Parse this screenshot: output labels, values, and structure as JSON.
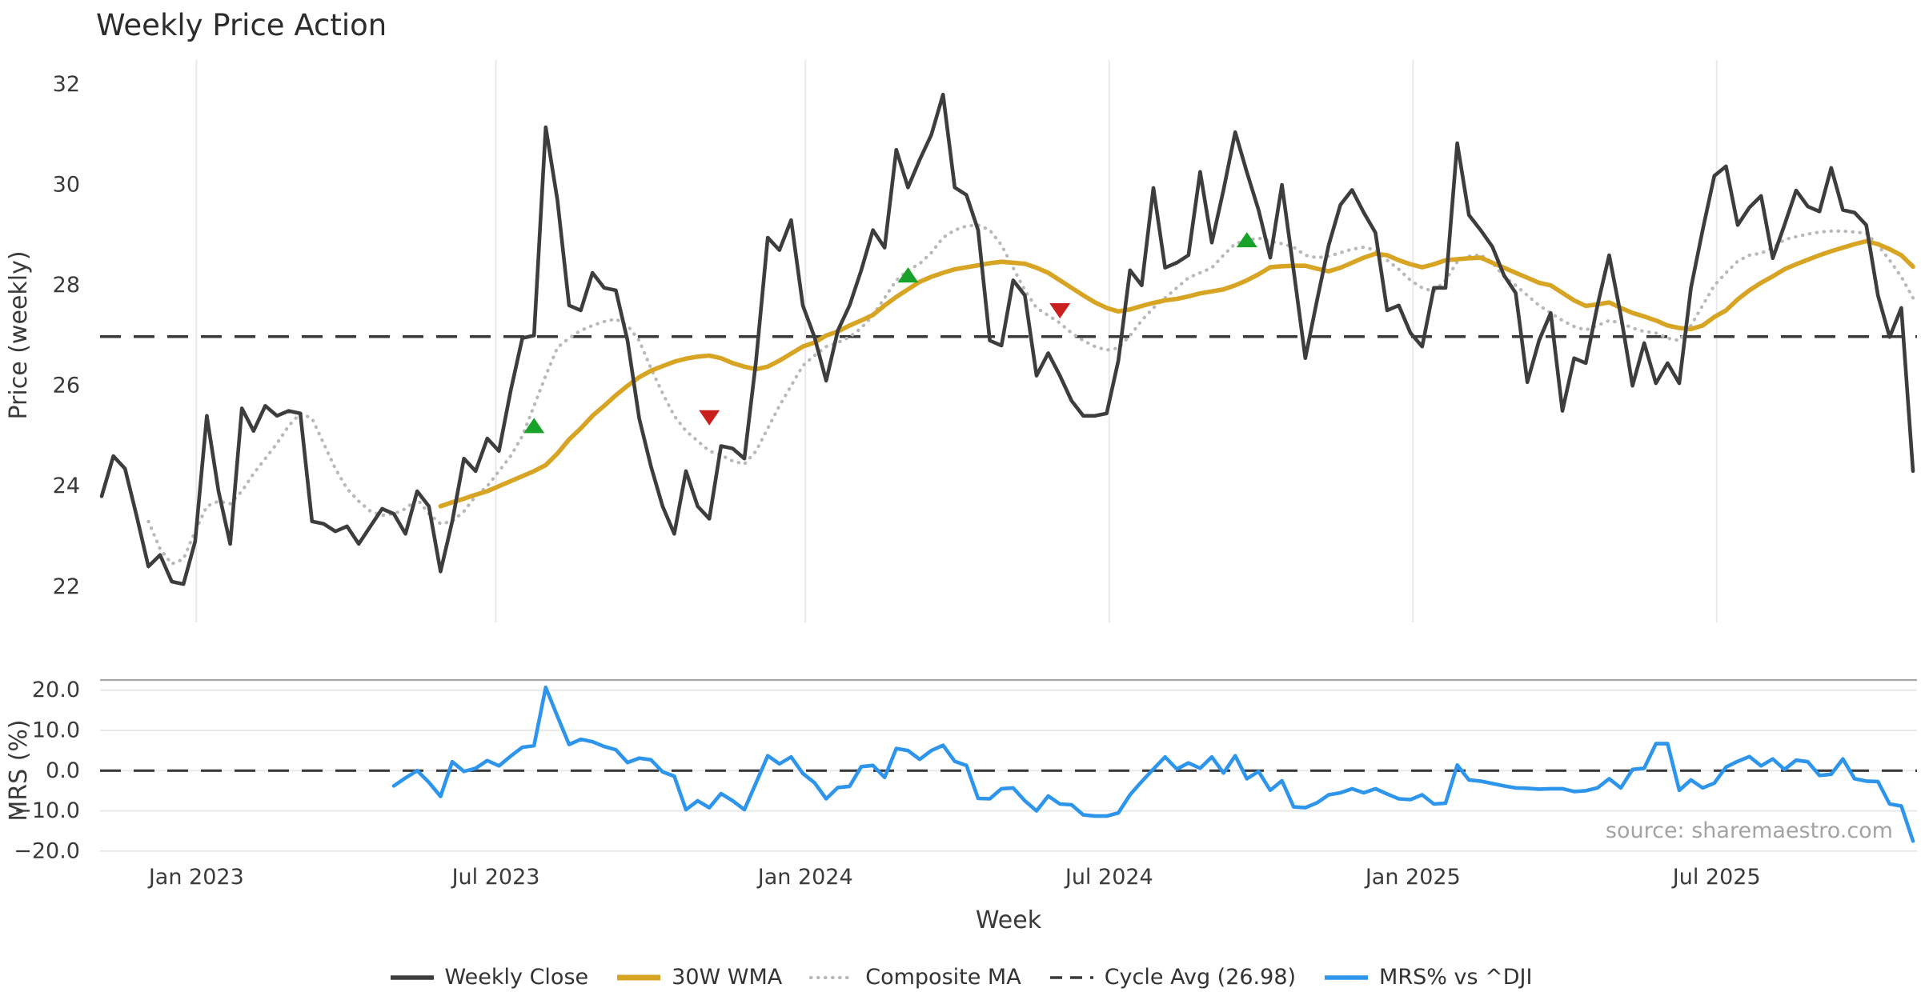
{
  "header": {
    "title": "Weekly Price Action"
  },
  "axes": {
    "price_label": "Price (weekly)",
    "mrs_label": "MRS (%)",
    "week_label": "Week"
  },
  "source": {
    "text": "source: sharemaestro.com"
  },
  "colors": {
    "close": "#3d3d3d",
    "wma": "#D7A424",
    "composite": "#b9b9b9",
    "cycle": "#3a3a3a",
    "mrs": "#2E95EC",
    "buy": "#18A229",
    "sell": "#C9201E",
    "grid_v": "#e8e8ee",
    "grid_h": "#e9e9e9",
    "spine": "#a8a8a8",
    "tick_text": "#3a3a3a",
    "title_text": "#2c2c2c",
    "source_text": "#a3a3a3"
  },
  "chart_data": {
    "type": "line",
    "title": "Weekly Price Action",
    "xlabel": "Week",
    "x_start_date": "2022-11-06",
    "x_step_days": 7,
    "x_ticks": [
      {
        "label": "Jan 2023",
        "week": 8.1
      },
      {
        "label": "Jul 2023",
        "week": 33.73
      },
      {
        "label": "Jan 2024",
        "week": 60.22
      },
      {
        "label": "Jul 2024",
        "week": 86.22
      },
      {
        "label": "Jan 2025",
        "week": 112.21
      },
      {
        "label": "Jul 2025",
        "week": 138.2
      }
    ],
    "legend_position": "bottom-center",
    "panels": [
      {
        "name": "price",
        "ylabel": "Price (weekly)",
        "ylim": [
          21.3,
          32.45
        ],
        "yticks": [
          {
            "label": "32",
            "value": 32
          },
          {
            "label": "30",
            "value": 30
          },
          {
            "label": "28",
            "value": 28
          },
          {
            "label": "26",
            "value": 26
          },
          {
            "label": "24",
            "value": 24
          },
          {
            "label": "22",
            "value": 22
          }
        ],
        "grid": "vertical-only",
        "cycle_avg": 26.98,
        "buy_signals": [
          {
            "week": 37,
            "price": 25.2
          },
          {
            "week": 69,
            "price": 28.2
          },
          {
            "week": 98,
            "price": 28.9
          }
        ],
        "sell_signals": [
          {
            "week": 52,
            "price": 25.37
          },
          {
            "week": 82,
            "price": 27.5
          }
        ],
        "series": [
          {
            "name": "Weekly Close",
            "start_week": 0,
            "values": [
              23.8,
              24.6,
              24.35,
              23.4,
              22.4,
              22.63,
              22.1,
              22.05,
              22.9,
              25.4,
              23.9,
              22.85,
              25.55,
              25.1,
              25.6,
              25.4,
              25.5,
              25.45,
              23.3,
              23.25,
              23.1,
              23.2,
              22.85,
              23.2,
              23.55,
              23.45,
              23.05,
              23.9,
              23.6,
              22.3,
              23.3,
              24.55,
              24.3,
              24.95,
              24.7,
              25.9,
              26.95,
              27.0,
              31.15,
              29.7,
              27.6,
              27.5,
              28.25,
              27.95,
              27.9,
              26.9,
              25.35,
              24.4,
              23.6,
              23.05,
              24.3,
              23.6,
              23.35,
              24.8,
              24.75,
              24.55,
              26.5,
              28.95,
              28.7,
              29.3,
              27.6,
              26.97,
              26.1,
              27.1,
              27.6,
              28.3,
              29.1,
              28.75,
              30.7,
              29.95,
              30.5,
              31.0,
              31.8,
              29.95,
              29.8,
              29.1,
              26.9,
              26.8,
              28.1,
              27.8,
              26.2,
              26.65,
              26.2,
              25.7,
              25.4,
              25.4,
              25.45,
              26.5,
              28.3,
              28.0,
              29.94,
              28.35,
              28.45,
              28.6,
              30.26,
              28.85,
              29.9,
              31.05,
              30.25,
              29.5,
              28.55,
              30.0,
              28.3,
              26.55,
              27.7,
              28.8,
              29.6,
              29.9,
              29.45,
              29.05,
              27.5,
              27.6,
              27.05,
              26.78,
              27.95,
              27.95,
              30.83,
              29.4,
              29.1,
              28.77,
              28.2,
              27.85,
              26.07,
              26.9,
              27.45,
              25.5,
              26.55,
              26.45,
              27.6,
              28.6,
              27.4,
              26.0,
              26.85,
              26.05,
              26.45,
              26.05,
              27.95,
              29.1,
              30.18,
              30.37,
              29.2,
              29.55,
              29.78,
              28.54,
              29.2,
              29.89,
              29.57,
              29.47,
              30.34,
              29.5,
              29.45,
              29.2,
              27.8,
              26.97,
              27.55,
              24.3
            ]
          },
          {
            "name": "30W WMA",
            "start_week": 29,
            "values": [
              23.6,
              23.68,
              23.75,
              23.83,
              23.9,
              24.0,
              24.1,
              24.2,
              24.3,
              24.42,
              24.65,
              24.93,
              25.15,
              25.4,
              25.6,
              25.81,
              26.0,
              26.17,
              26.3,
              26.39,
              26.48,
              26.54,
              26.58,
              26.6,
              26.55,
              26.45,
              26.38,
              26.33,
              26.38,
              26.5,
              26.64,
              26.78,
              26.86,
              27.0,
              27.08,
              27.2,
              27.3,
              27.41,
              27.6,
              27.77,
              27.92,
              28.07,
              28.17,
              28.25,
              28.32,
              28.36,
              28.4,
              28.44,
              28.47,
              28.45,
              28.43,
              28.35,
              28.25,
              28.1,
              27.95,
              27.8,
              27.66,
              27.55,
              27.48,
              27.52,
              27.59,
              27.65,
              27.7,
              27.73,
              27.78,
              27.84,
              27.88,
              27.92,
              28.0,
              28.1,
              28.22,
              28.36,
              28.38,
              28.39,
              28.39,
              28.33,
              28.28,
              28.35,
              28.45,
              28.55,
              28.63,
              28.6,
              28.5,
              28.42,
              28.36,
              28.42,
              28.5,
              28.52,
              28.54,
              28.55,
              28.45,
              28.35,
              28.25,
              28.15,
              28.05,
              28.0,
              27.85,
              27.7,
              27.59,
              27.62,
              27.66,
              27.55,
              27.45,
              27.38,
              27.3,
              27.2,
              27.15,
              27.13,
              27.2,
              27.37,
              27.5,
              27.72,
              27.9,
              28.05,
              28.18,
              28.32,
              28.42,
              28.51,
              28.6,
              28.68,
              28.75,
              28.82,
              28.88,
              28.82,
              28.72,
              28.6,
              28.37
            ]
          },
          {
            "name": "Composite MA",
            "start_week": 4,
            "values": [
              23.3,
              22.75,
              22.45,
              22.55,
              23.1,
              23.6,
              23.7,
              23.65,
              23.9,
              24.25,
              24.55,
              24.85,
              25.2,
              25.45,
              25.35,
              24.85,
              24.35,
              23.95,
              23.7,
              23.5,
              23.42,
              23.45,
              23.55,
              23.75,
              23.45,
              23.25,
              23.3,
              23.5,
              23.8,
              24.0,
              24.3,
              24.6,
              25.0,
              25.6,
              26.2,
              26.76,
              26.95,
              27.1,
              27.2,
              27.28,
              27.33,
              27.2,
              26.9,
              26.35,
              25.85,
              25.4,
              25.1,
              24.9,
              24.7,
              24.62,
              24.5,
              24.44,
              24.7,
              25.15,
              25.6,
              26.0,
              26.4,
              26.6,
              26.78,
              26.86,
              26.97,
              27.15,
              27.4,
              27.75,
              28.1,
              28.3,
              28.43,
              28.65,
              28.95,
              29.1,
              29.18,
              29.2,
              29.1,
              28.8,
              28.35,
              27.9,
              27.55,
              27.4,
              27.25,
              27.05,
              26.9,
              26.78,
              26.71,
              26.75,
              27.0,
              27.3,
              27.55,
              27.75,
              27.95,
              28.15,
              28.25,
              28.35,
              28.6,
              28.83,
              28.9,
              28.94,
              28.88,
              28.83,
              28.76,
              28.6,
              28.55,
              28.58,
              28.65,
              28.72,
              28.76,
              28.7,
              28.5,
              28.32,
              28.1,
              27.95,
              27.88,
              28.1,
              28.47,
              28.58,
              28.61,
              28.45,
              28.18,
              28.0,
              27.8,
              27.6,
              27.45,
              27.3,
              27.18,
              27.11,
              27.2,
              27.3,
              27.25,
              27.15,
              27.08,
              27.05,
              26.95,
              26.9,
              27.2,
              27.6,
              28.0,
              28.25,
              28.48,
              28.6,
              28.64,
              28.75,
              28.91,
              28.97,
              29.02,
              29.06,
              29.08,
              29.08,
              29.06,
              29.04,
              28.8,
              28.5,
              28.17,
              27.75
            ]
          }
        ]
      },
      {
        "name": "mrs",
        "ylabel": "MRS (%)",
        "ylim": [
          -22.6,
          22.5
        ],
        "yticks": [
          {
            "label": "20.0",
            "value": 20
          },
          {
            "label": "10.0",
            "value": 10
          },
          {
            "label": "0.0",
            "value": 0
          },
          {
            "label": "−10.0",
            "value": -10
          },
          {
            "label": "−20.0",
            "value": -20
          }
        ],
        "grid": "horizontal-only",
        "zero_line": 0,
        "series": [
          {
            "name": "MRS% vs ^DJI",
            "start_week": 25,
            "values": [
              -3.8,
              -1.8,
              0.0,
              -2.9,
              -6.4,
              2.2,
              -0.2,
              0.6,
              2.5,
              1.2,
              3.6,
              5.8,
              6.2,
              20.7,
              13.5,
              6.5,
              7.8,
              7.2,
              6.0,
              5.2,
              2.0,
              3.1,
              2.7,
              -0.3,
              -1.4,
              -9.7,
              -7.5,
              -9.2,
              -5.7,
              -7.5,
              -9.7,
              -3.0,
              3.7,
              1.7,
              3.4,
              -0.7,
              -3.0,
              -7.0,
              -4.2,
              -3.9,
              1.0,
              1.3,
              -1.7,
              5.5,
              5.0,
              2.8,
              5.0,
              6.3,
              2.3,
              1.3,
              -6.9,
              -7.0,
              -4.5,
              -4.3,
              -7.5,
              -10.0,
              -6.3,
              -8.3,
              -8.5,
              -11.0,
              -11.3,
              -11.3,
              -10.5,
              -6.0,
              -2.7,
              0.4,
              3.4,
              0.4,
              1.9,
              0.6,
              3.4,
              -0.6,
              3.7,
              -2.0,
              -0.2,
              -4.9,
              -2.5,
              -9.0,
              -9.2,
              -8.0,
              -6.0,
              -5.5,
              -4.5,
              -5.5,
              -4.5,
              -5.8,
              -7.0,
              -7.2,
              -6.0,
              -8.3,
              -8.1,
              1.4,
              -2.3,
              -2.6,
              -3.2,
              -3.8,
              -4.3,
              -4.4,
              -4.6,
              -4.5,
              -4.5,
              -5.2,
              -5.0,
              -4.3,
              -2.0,
              -4.3,
              0.3,
              0.6,
              6.7,
              6.7,
              -4.9,
              -2.3,
              -4.3,
              -3.1,
              0.9,
              2.3,
              3.5,
              1.2,
              2.9,
              0.3,
              2.6,
              2.2,
              -1.2,
              -0.9,
              2.9,
              -2.0,
              -2.6,
              -2.7,
              -8.3,
              -8.8,
              -17.5
            ]
          }
        ]
      }
    ]
  },
  "legend": {
    "items": [
      {
        "label": "Weekly Close",
        "swatch": "solid",
        "color_key": "close"
      },
      {
        "label": "30W WMA",
        "swatch": "solid-thick",
        "color_key": "wma"
      },
      {
        "label": "Composite MA",
        "swatch": "dotted",
        "color_key": "composite"
      },
      {
        "label": "Cycle Avg (26.98)",
        "swatch": "dashed",
        "color_key": "cycle"
      },
      {
        "label": "MRS% vs ^DJI",
        "swatch": "solid",
        "color_key": "mrs"
      }
    ]
  }
}
